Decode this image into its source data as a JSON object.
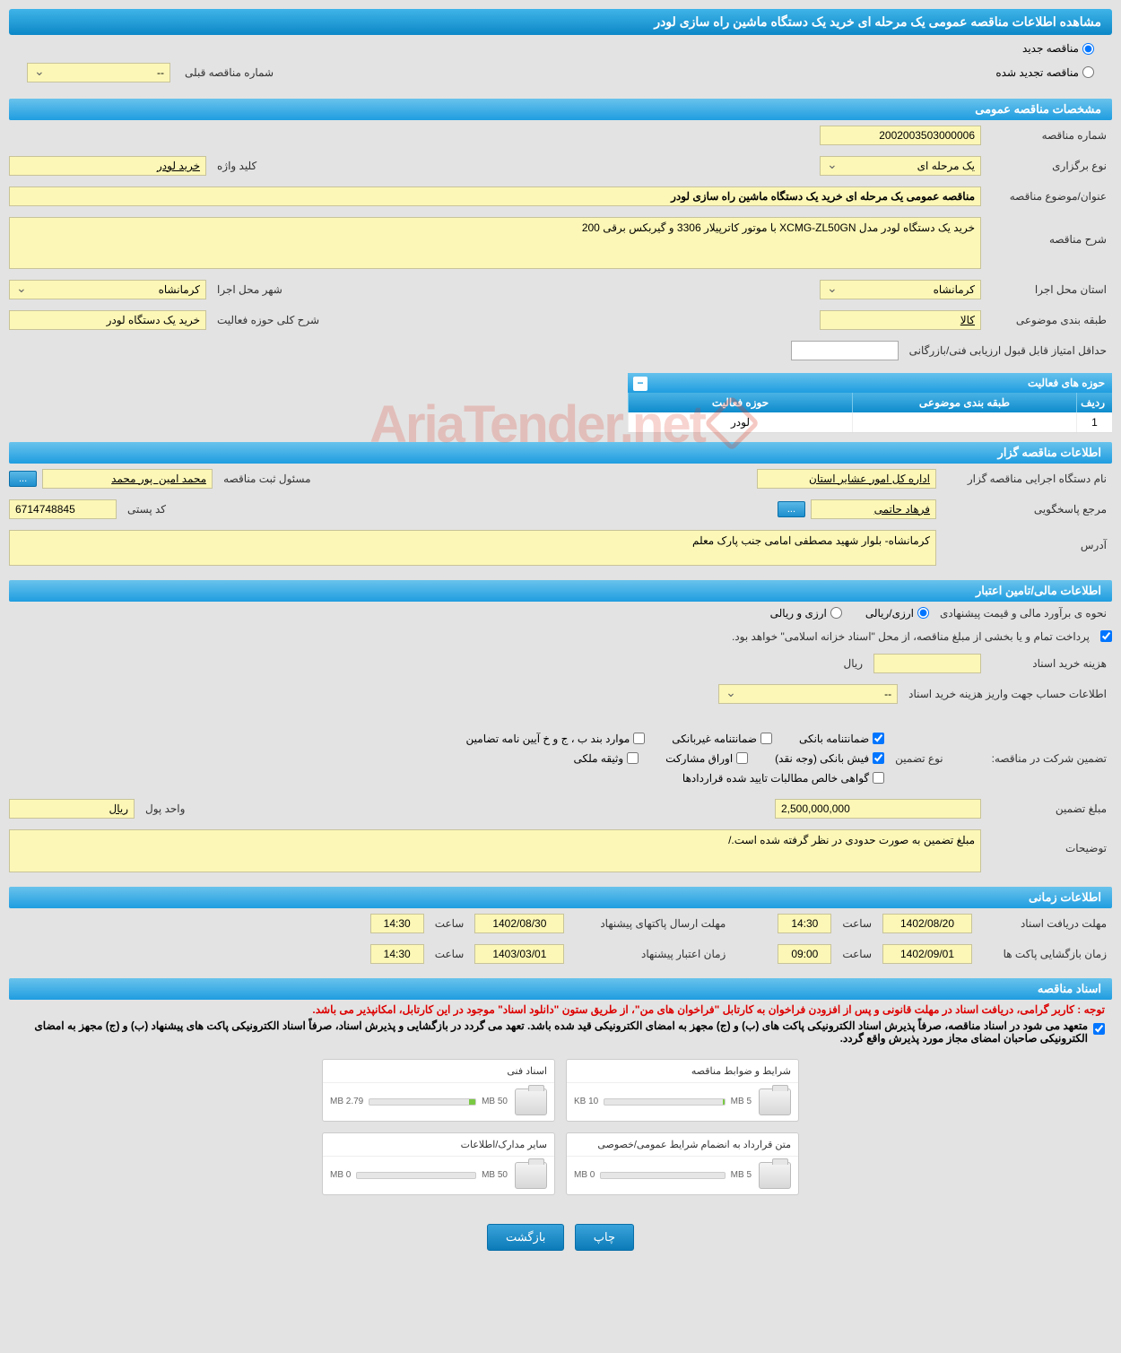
{
  "header": {
    "title": "مشاهده اطلاعات مناقصه عمومی یک مرحله ای خرید یک دستگاه ماشین راه سازی لودر"
  },
  "status": {
    "new_radio": "مناقصه جدید",
    "renewed_radio": "مناقصه تجدید شده",
    "prev_number_label": "شماره مناقصه قبلی",
    "prev_number_value": "--"
  },
  "sections": {
    "general": "مشخصات مناقصه عمومی",
    "tenderer": "اطلاعات مناقصه گزار",
    "financial": "اطلاعات مالی/تامین اعتبار",
    "timing": "اطلاعات زمانی",
    "documents": "اسناد مناقصه"
  },
  "general": {
    "tender_no_label": "شماره مناقصه",
    "tender_no": "2002003503000006",
    "type_label": "نوع برگزاری",
    "type": "یک مرحله ای",
    "keyword_label": "کلید واژه",
    "keyword": "خرید لودر",
    "title_label": "عنوان/موضوع مناقصه",
    "title": "مناقصه عمومی یک مرحله ای خرید یک دستگاه ماشین راه سازی لودر",
    "desc_label": "شرح مناقصه",
    "desc": "خرید یک دستگاه لودر مدل XCMG-ZL50GN با موتور کاترپیلار 3306 و گیربکس برقی 200",
    "province_label": "استان محل اجرا",
    "province": "کرمانشاه",
    "city_label": "شهر محل اجرا",
    "city": "کرمانشاه",
    "category_label": "طبقه بندی موضوعی",
    "category": "کالا",
    "activity_desc_label": "شرح کلی حوزه فعالیت",
    "activity_desc": "خرید یک دستگاه لودر",
    "min_score_label": "حداقل امتیاز قابل قبول ارزیابی فنی/بازرگانی",
    "min_score": ""
  },
  "activity_table": {
    "title": "حوزه های فعالیت",
    "col_idx": "ردیف",
    "col_cat": "طبقه بندی موضوعی",
    "col_act": "حوزه فعالیت",
    "rows": [
      {
        "idx": "1",
        "cat": "",
        "act": "لودر"
      }
    ]
  },
  "tenderer": {
    "org_label": "نام دستگاه اجرایی مناقصه گزار",
    "org": "اداره کل امور عشایر استان",
    "officer_label": "مسئول ثبت مناقصه",
    "officer": "محمد امین  پور محمد",
    "contact_label": "مرجع پاسخگویی",
    "contact": "فرهاد حاتمی",
    "postal_label": "کد پستی",
    "postal": "6714748845",
    "address_label": "آدرس",
    "address": "کرمانشاه- بلوار شهید مصطفی امامی جنب پارک معلم",
    "ellipsis": "..."
  },
  "financial": {
    "estimate_label": "نحوه ی برآورد مالی و قیمت پیشنهادی",
    "rial_radio": "ارزی/ریالی",
    "fx_radio": "ارزی و ریالی",
    "treasury_note": "پرداخت تمام و یا بخشی از مبلغ مناقصه، از محل \"اسناد خزانه اسلامی\" خواهد بود.",
    "doc_cost_label": "هزینه خرید اسناد",
    "doc_cost_unit": "ریال",
    "doc_cost": "",
    "account_label": "اطلاعات حساب جهت واریز هزینه خرید اسناد",
    "account": "--",
    "guarantee_section_label": "تضمین شرکت در مناقصه:",
    "guarantee_type_label": "نوع تضمین",
    "guarantees": {
      "bank_guarantee": "ضمانتنامه بانکی",
      "nonbank_guarantee": "ضمانتنامه غیربانکی",
      "items_b_etc": "موارد بند ب ، ج و خ آیین نامه تضامین",
      "bank_receipt": "فیش بانکی (وجه نقد)",
      "participation_bonds": "اوراق مشارکت",
      "property_deposit": "وثیقه ملکی",
      "contract_receivables": "گواهی خالص مطالبات تایید شده قراردادها"
    },
    "amount_label": "مبلغ تضمین",
    "amount": "2,500,000,000",
    "currency_label": "واحد پول",
    "currency": "ریال",
    "notes_label": "توضیحات",
    "notes": "مبلغ تضمین به صورت حدودی در نظر گرفته شده است./"
  },
  "timing": {
    "receive_deadline_label": "مهلت دریافت اسناد",
    "receive_deadline_date": "1402/08/20",
    "receive_deadline_time": "14:30",
    "submit_deadline_label": "مهلت ارسال پاکتهای پیشنهاد",
    "submit_deadline_date": "1402/08/30",
    "submit_deadline_time": "14:30",
    "opening_label": "زمان بازگشایی پاکت ها",
    "opening_date": "1402/09/01",
    "opening_time": "09:00",
    "validity_label": "زمان اعتبار پیشنهاد",
    "validity_date": "1403/03/01",
    "validity_time": "14:30",
    "time_label": "ساعت"
  },
  "docs": {
    "note_red": "توجه : کاربر گرامی، دریافت اسناد در مهلت قانونی و پس از افزودن فراخوان به کارتابل \"فراخوان های من\"، از طریق ستون \"دانلود اسناد\" موجود در این کارتابل، امکانپذیر می باشد.",
    "note_black1": "متعهد می شود در اسناد مناقصه، صرفاً پذیرش اسناد الکترونیکی پاکت های (ب) و (ج) مجهز به امضای الکترونیکی قید شده باشد. تعهد می گردد در بازگشایی و پذیرش اسناد، صرفاً اسناد الکترونیکی پاکت های پیشنهاد (ب) و (ج) مجهز به امضای الکترونیکی صاحبان امضای مجاز مورد پذیرش واقع گردد.",
    "cards": [
      {
        "title": "شرایط و ضوابط مناقصه",
        "used": "10 KB",
        "limit": "5 MB",
        "pct": 1
      },
      {
        "title": "اسناد فنی",
        "used": "2.79 MB",
        "limit": "50 MB",
        "pct": 6
      },
      {
        "title": "متن قرارداد به انضمام شرایط عمومی/خصوصی",
        "used": "0 MB",
        "limit": "5 MB",
        "pct": 0
      },
      {
        "title": "سایر مدارک/اطلاعات",
        "used": "0 MB",
        "limit": "50 MB",
        "pct": 0
      }
    ]
  },
  "buttons": {
    "print": "چاپ",
    "back": "بازگشت"
  },
  "watermark": "AriaTender.net"
}
